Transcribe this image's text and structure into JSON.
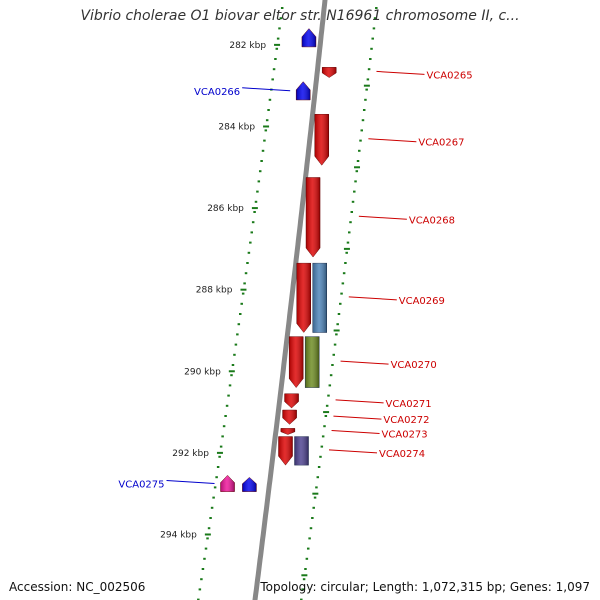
{
  "title": "Vibrio cholerae O1 biovar eltor str. N16961 chromosome II, c...",
  "accession": "Accession: NC_002506",
  "topology": "Topology: circular; Length: 1,072,315 bp; Genes: 1,097",
  "colors": {
    "backbone": "#888888",
    "tick": "#1a7a1a",
    "forward_label": "#cc0000",
    "reverse_label": "#0000cc",
    "backdrop": "#ffffff"
  },
  "scale": {
    "unit": "kbp",
    "major_ticks": [
      {
        "kbp": 282,
        "label": "282 kbp"
      },
      {
        "kbp": 284,
        "label": "284 kbp"
      },
      {
        "kbp": 286,
        "label": "286 kbp"
      },
      {
        "kbp": 288,
        "label": "288 kbp"
      },
      {
        "kbp": 290,
        "label": "290 kbp"
      },
      {
        "kbp": 292,
        "label": "292 kbp"
      },
      {
        "kbp": 294,
        "label": "294 kbp"
      }
    ]
  },
  "genes": [
    {
      "name": "VCA0265",
      "strand": "+",
      "start_kbp": 282.55,
      "end_kbp": 282.8,
      "color": "#dd0000",
      "labeled": true
    },
    {
      "name": "VCA0266",
      "strand": "-",
      "start_kbp": 282.9,
      "end_kbp": 283.35,
      "color": "#0000ee",
      "labeled": true
    },
    {
      "name": "VCA0267",
      "strand": "+",
      "start_kbp": 283.7,
      "end_kbp": 284.95,
      "color": "#dd0000",
      "labeled": true
    },
    {
      "name": "VCA0268",
      "strand": "+",
      "start_kbp": 285.25,
      "end_kbp": 287.2,
      "color": "#dd0000",
      "labeled": true
    },
    {
      "name": "VCA0269",
      "strand": "+",
      "start_kbp": 287.35,
      "end_kbp": 289.05,
      "color": "#dd0000",
      "labeled": true
    },
    {
      "name": "VCA0270",
      "strand": "+",
      "start_kbp": 289.15,
      "end_kbp": 290.4,
      "color": "#dd0000",
      "labeled": true
    },
    {
      "name": "VCA0271",
      "strand": "+",
      "start_kbp": 290.55,
      "end_kbp": 290.9,
      "color": "#dd0000",
      "labeled": true
    },
    {
      "name": "VCA0272",
      "strand": "+",
      "start_kbp": 290.95,
      "end_kbp": 291.3,
      "color": "#dd0000",
      "labeled": true
    },
    {
      "name": "VCA0273",
      "strand": "+",
      "start_kbp": 291.4,
      "end_kbp": 291.55,
      "color": "#dd0000",
      "labeled": true
    },
    {
      "name": "VCA0274",
      "strand": "+",
      "start_kbp": 291.6,
      "end_kbp": 292.3,
      "color": "#dd0000",
      "labeled": true
    },
    {
      "name": "VCA0275",
      "strand": "-",
      "start_kbp": 292.55,
      "end_kbp": 292.95,
      "color": "#ee1199",
      "labeled": true
    },
    {
      "name": "",
      "strand": "-",
      "start_kbp": 281.6,
      "end_kbp": 282.05,
      "color": "#0000ee",
      "labeled": false
    },
    {
      "name": "",
      "strand": "-",
      "start_kbp": 292.6,
      "end_kbp": 292.95,
      "color": "#0000ee",
      "labeled": false
    }
  ],
  "domains": [
    {
      "start_kbp": 287.35,
      "end_kbp": 289.05,
      "color": "#4a82b8"
    },
    {
      "start_kbp": 289.15,
      "end_kbp": 290.4,
      "color": "#6b8a1e"
    },
    {
      "start_kbp": 291.6,
      "end_kbp": 292.3,
      "color": "#4b3f8f"
    }
  ]
}
